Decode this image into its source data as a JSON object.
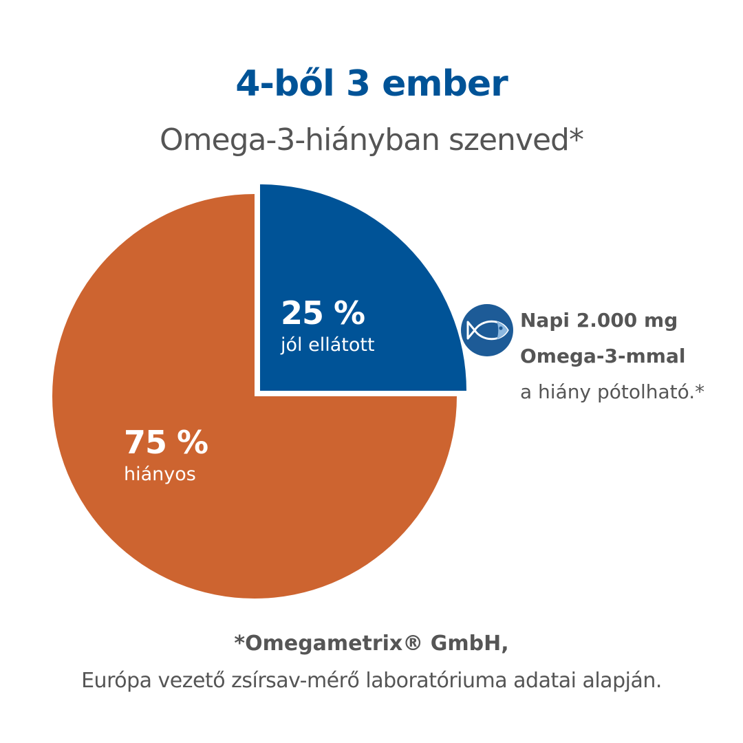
{
  "header": {
    "title": "4-ből 3 ember",
    "subtitle": "Omega-3-hiányban szenved*"
  },
  "chart_data": {
    "type": "pie",
    "slices": [
      {
        "value": 25,
        "label": "25 %",
        "description": "jól ellátott",
        "color": "#005397"
      },
      {
        "value": 75,
        "label": "75 %",
        "description": "hiányos",
        "color": "#CD6430"
      }
    ]
  },
  "callout": {
    "icon": "fish-icon",
    "line1": "Napi 2.000 mg",
    "line2": "Omega-3-mmal",
    "line3": "a hiány pótolható.*"
  },
  "footnote": {
    "title": "*Omegametrix® GmbH,",
    "text": "Európa vezető zsírsav-mérő laboratóriuma adatai alapján."
  },
  "colors": {
    "title": "#005397",
    "text_gray": "#555555",
    "blue": "#005397",
    "orange": "#CD6430",
    "badge_blue": "#1D5B97",
    "fish_light": "#8CB8E0"
  }
}
